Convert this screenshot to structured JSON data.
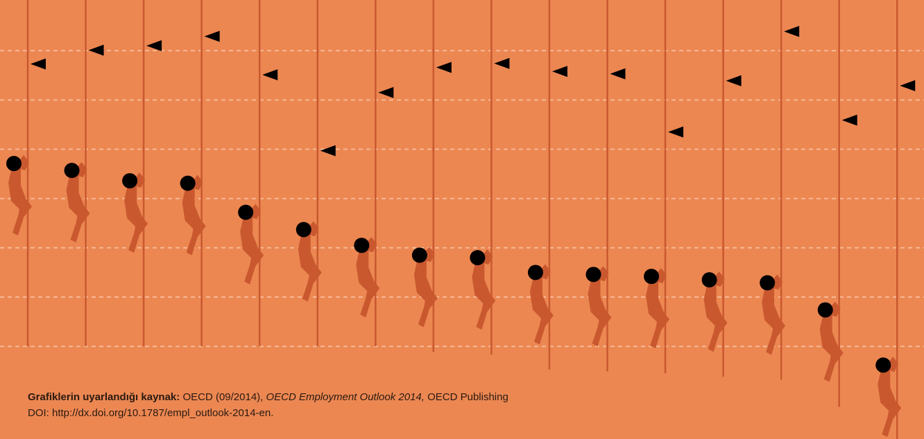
{
  "chart_data": {
    "type": "dot-flag",
    "categories": [
      null,
      null,
      null,
      null,
      null,
      null,
      null,
      null,
      null,
      null,
      null,
      null,
      null,
      null,
      null,
      null
    ],
    "series": [
      {
        "marker": "circle",
        "color": "#000000",
        "values": [
          3.71,
          3.57,
          3.36,
          3.31,
          2.72,
          2.37,
          2.05,
          1.85,
          1.8,
          1.5,
          1.46,
          1.42,
          1.35,
          1.29,
          0.74,
          -0.38
        ]
      },
      {
        "marker": "flag",
        "color": "#000000",
        "values": [
          5.73,
          6.01,
          6.1,
          6.29,
          5.51,
          3.97,
          5.15,
          5.66,
          5.74,
          5.58,
          5.53,
          4.35,
          5.39,
          6.39,
          4.59,
          5.29
        ]
      }
    ],
    "ylim": [
      -1.5,
      7
    ],
    "yticks": [
      0,
      1,
      2,
      3,
      4,
      5,
      6
    ],
    "grid": true
  },
  "source": {
    "label": "Grafiklerin uyarlandığı kaynak:",
    "publisher": "OECD (09/2014),",
    "title": "OECD Employment Outlook 2014,",
    "imprint": "OECD Publishing",
    "doi": "DOI: http://dx.doi.org/10.1787/empl_outlook-2014-en."
  }
}
